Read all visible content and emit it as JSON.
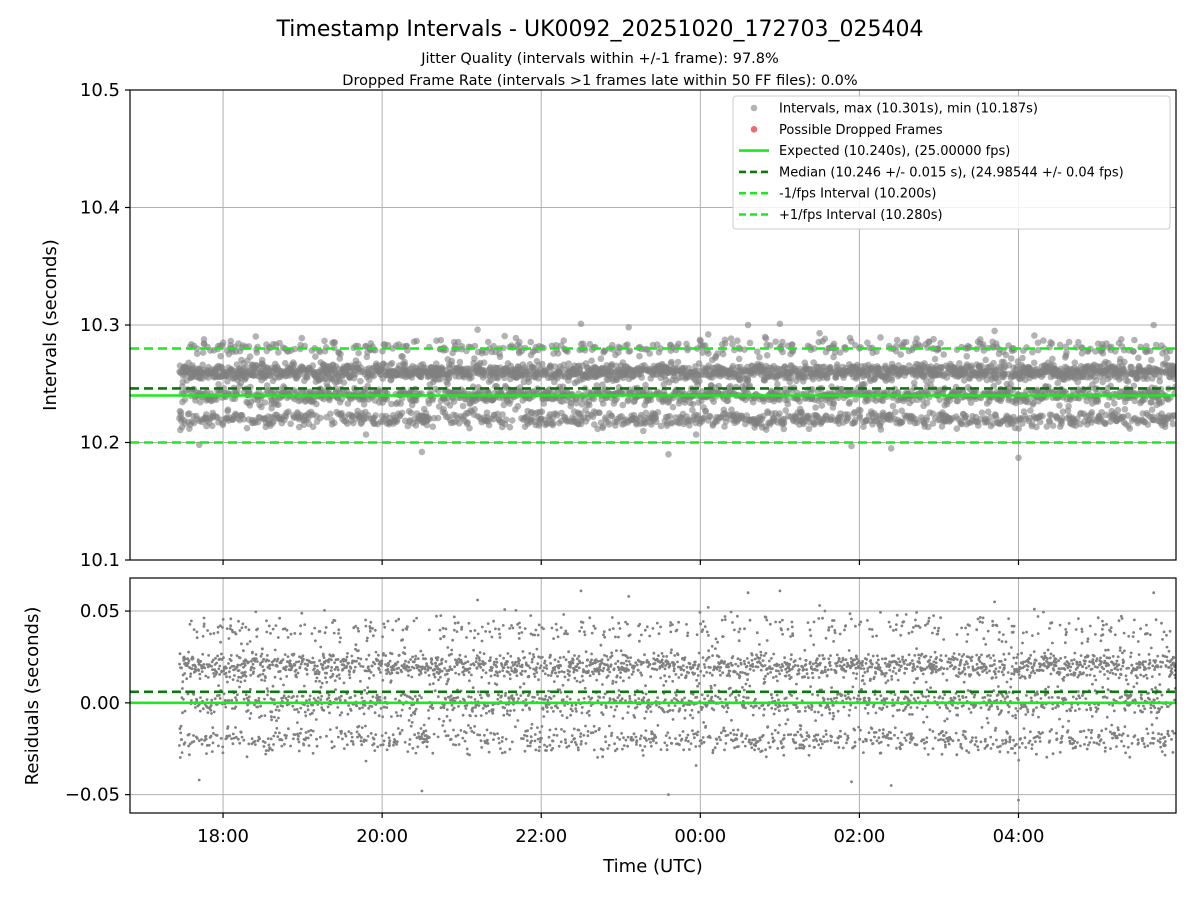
{
  "chart_data": {
    "type": "scatter",
    "title": "Timestamp Intervals - UK0092_20251020_172703_025404",
    "subtitle_lines": [
      "Jitter Quality (intervals within +/-1 frame): 97.8%",
      "Dropped Frame Rate (intervals >1 frames late within 50 FF files): 0.0%"
    ],
    "xlabel": "Time (UTC)",
    "x_ticks": [
      "18:00",
      "20:00",
      "22:00",
      "00:00",
      "02:00",
      "04:00"
    ],
    "x_tick_hours": [
      18,
      20,
      22,
      24,
      26,
      28
    ],
    "xlim_hours": [
      16.83,
      29.98
    ],
    "data_x_range_hours": [
      17.45,
      29.98
    ],
    "grid": true,
    "legend_position": "top-right",
    "colors": {
      "points": "#808080",
      "dropped": "#e8525a",
      "expected": "#1ee81e",
      "median": "#0b7a0b",
      "interval": "#1ee81e"
    },
    "upper": {
      "ylabel": "Intervals (seconds)",
      "ylim": [
        10.1,
        10.5
      ],
      "y_ticks": [
        "10.1",
        "10.2",
        "10.3",
        "10.4",
        "10.5"
      ],
      "y_tick_values": [
        10.1,
        10.2,
        10.3,
        10.4,
        10.5
      ],
      "expected": 10.24,
      "median": 10.246,
      "lower_interval": 10.2,
      "upper_interval": 10.28,
      "max": 10.301,
      "min": 10.187,
      "legend": [
        "Intervals, max (10.301s), min (10.187s)",
        "Possible Dropped Frames",
        "Expected (10.240s), (25.00000 fps)",
        "Median (10.246 +/- 0.015 s), (24.98544 +/- 0.04 fps)",
        "-1/fps Interval (10.200s)",
        "+1/fps Interval (10.280s)"
      ]
    },
    "lower": {
      "ylabel": "Residuals (seconds)",
      "ylim": [
        -0.06,
        0.068
      ],
      "y_ticks": [
        "−0.05",
        "0.00",
        "0.05"
      ],
      "y_tick_values": [
        -0.05,
        0.0,
        0.05
      ],
      "zero_line": 0.0,
      "median_residual": 0.006
    },
    "series": [
      {
        "name": "Intervals",
        "count": 4400,
        "levels": [
          10.22,
          10.24,
          10.26,
          10.28
        ],
        "residual_levels": [
          -0.02,
          0.0,
          0.02,
          0.04
        ],
        "outliers_y": [
          10.301,
          10.301,
          10.3,
          10.3,
          10.298,
          10.296,
          10.295,
          10.293,
          10.292,
          10.291,
          10.19,
          10.192,
          10.195,
          10.197,
          10.198,
          10.187
        ],
        "outliers_x_hours": [
          22.5,
          25.0,
          29.7,
          24.6,
          23.1,
          21.2,
          27.7,
          25.5,
          24.1,
          28.2,
          23.6,
          20.5,
          26.4,
          25.9,
          17.7,
          28.0
        ]
      }
    ]
  }
}
